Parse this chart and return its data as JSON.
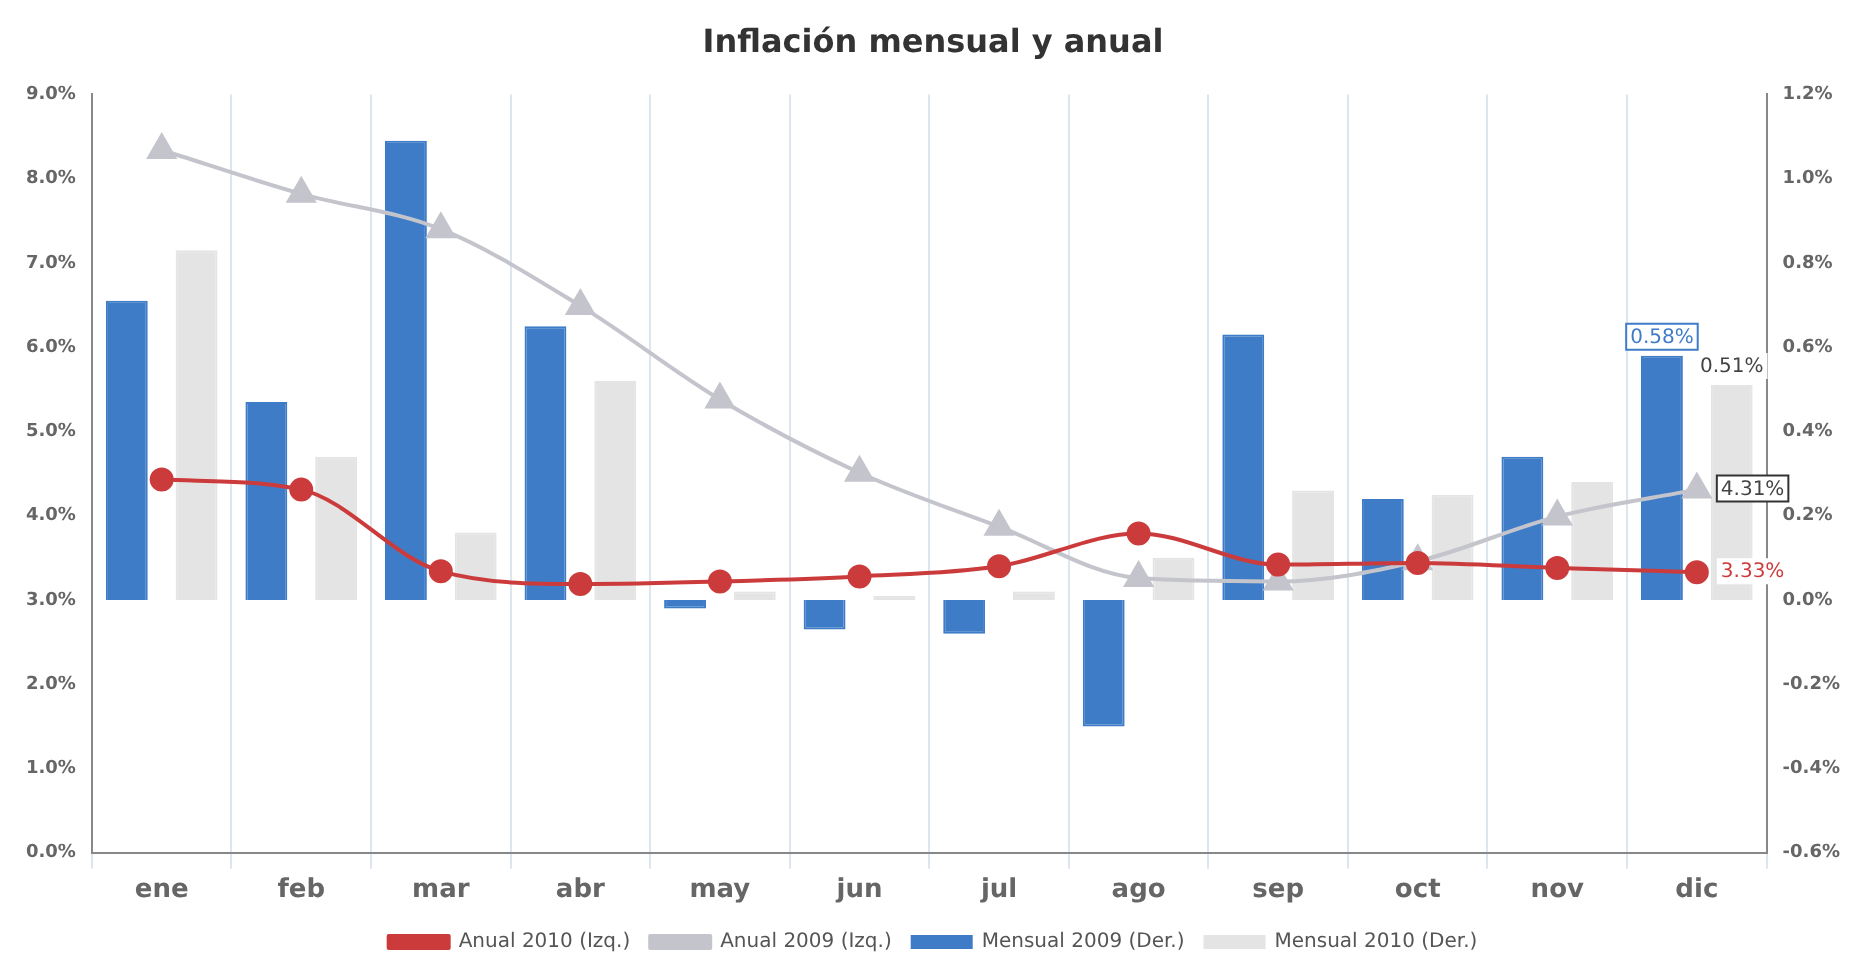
{
  "chart_data": {
    "type": "bar",
    "title": "Inflación mensual y anual",
    "categories": [
      "ene",
      "feb",
      "mar",
      "abr",
      "may",
      "jun",
      "jul",
      "ago",
      "sep",
      "oct",
      "nov",
      "dic"
    ],
    "series": [
      {
        "name": "Mensual 2009 (Der.)",
        "axis": "y2",
        "color": "#3f7cc8",
        "values": [
          0.71,
          0.47,
          1.09,
          0.65,
          -0.02,
          -0.07,
          -0.08,
          -0.3,
          0.63,
          0.24,
          0.34,
          0.58
        ],
        "value_labels": [
          null,
          null,
          null,
          null,
          null,
          null,
          null,
          null,
          null,
          null,
          null,
          "0.58%"
        ]
      },
      {
        "name": "Mensual 2010 (Der.)",
        "axis": "y2",
        "color": "#e4e4e4",
        "values": [
          0.83,
          0.34,
          0.16,
          0.52,
          0.02,
          0.01,
          0.02,
          0.1,
          0.26,
          0.25,
          0.28,
          0.51
        ],
        "value_labels": [
          null,
          null,
          null,
          null,
          null,
          null,
          null,
          null,
          null,
          null,
          null,
          "0.51%"
        ]
      },
      {
        "name": "Anual 2009 (Izq.)",
        "type": "line",
        "marker": "triangle",
        "color": "#c4c4cc",
        "values": [
          8.34,
          7.82,
          7.4,
          6.49,
          5.38,
          4.51,
          3.87,
          3.26,
          3.22,
          3.46,
          3.99,
          4.31
        ],
        "value_labels": [
          null,
          null,
          null,
          null,
          null,
          null,
          null,
          null,
          null,
          null,
          null,
          "4.31%"
        ]
      },
      {
        "name": "Anual 2010 (Izq.)",
        "type": "line",
        "marker": "circle",
        "color": "#cc3b3b",
        "values": [
          4.43,
          4.31,
          3.34,
          3.19,
          3.22,
          3.28,
          3.4,
          3.79,
          3.42,
          3.44,
          3.38,
          3.33
        ],
        "value_labels": [
          null,
          null,
          null,
          null,
          null,
          null,
          null,
          null,
          null,
          null,
          null,
          "3.33%"
        ]
      }
    ],
    "ylim": [
      0,
      9
    ],
    "yticks": [
      {
        "value": 0,
        "label": "0.0%"
      },
      {
        "value": 1,
        "label": "1.0%"
      },
      {
        "value": 2,
        "label": "2.0%"
      },
      {
        "value": 3,
        "label": "3.0%"
      },
      {
        "value": 4,
        "label": "4.0%"
      },
      {
        "value": 5,
        "label": "5.0%"
      },
      {
        "value": 6,
        "label": "6.0%"
      },
      {
        "value": 7,
        "label": "7.0%"
      },
      {
        "value": 8,
        "label": "8.0%"
      },
      {
        "value": 9,
        "label": "9.0%"
      }
    ],
    "y2lim": [
      -0.6,
      1.2
    ],
    "y2ticks": [
      {
        "value": -0.6,
        "label": "-0.6%"
      },
      {
        "value": -0.4,
        "label": "-0.4%"
      },
      {
        "value": -0.2,
        "label": "-0.2%"
      },
      {
        "value": 0,
        "label": "0.0%"
      },
      {
        "value": 0.2,
        "label": "0.2%"
      },
      {
        "value": 0.4,
        "label": "0.4%"
      },
      {
        "value": 0.6,
        "label": "0.6%"
      },
      {
        "value": 0.8,
        "label": "0.8%"
      },
      {
        "value": 1.0,
        "label": "1.0%"
      },
      {
        "value": 1.2,
        "label": "1.2%"
      }
    ],
    "grid": "x",
    "legend": "bottom"
  }
}
